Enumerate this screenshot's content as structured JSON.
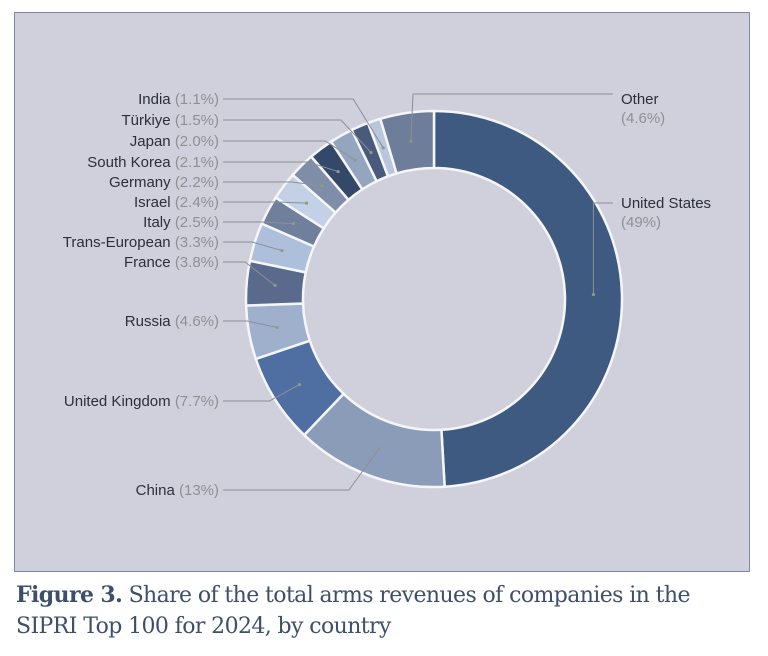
{
  "caption": {
    "figure_label": "Figure 3.",
    "text": " Share of the total arms revenues of companies in the SIPRI Top 100 for 2024, by country"
  },
  "chart_data": {
    "type": "pie",
    "donut": true,
    "title": "",
    "unit": "%",
    "start": "12 o'clock, clockwise",
    "slices": [
      {
        "label": "United States",
        "value": 49,
        "display": "(49%)",
        "color": "#3f5a80"
      },
      {
        "label": "China",
        "value": 13,
        "display": "(13%)",
        "color": "#8a9cb8"
      },
      {
        "label": "United Kingdom",
        "value": 7.7,
        "display": "(7.7%)",
        "color": "#4f6ea2"
      },
      {
        "label": "Russia",
        "value": 4.6,
        "display": "(4.6%)",
        "color": "#9fb0cc"
      },
      {
        "label": "France",
        "value": 3.8,
        "display": "(3.8%)",
        "color": "#5a6a8c"
      },
      {
        "label": "Trans-European",
        "value": 3.3,
        "display": "(3.3%)",
        "color": "#aebfdc"
      },
      {
        "label": "Italy",
        "value": 2.5,
        "display": "(2.5%)",
        "color": "#6f7f9c"
      },
      {
        "label": "Israel",
        "value": 2.4,
        "display": "(2.4%)",
        "color": "#c3d0e6"
      },
      {
        "label": "Germany",
        "value": 2.2,
        "display": "(2.2%)",
        "color": "#7f8ea8"
      },
      {
        "label": "South Korea",
        "value": 2.1,
        "display": "(2.1%)",
        "color": "#34486a"
      },
      {
        "label": "Japan",
        "value": 2.0,
        "display": "(2.0%)",
        "color": "#94a5c0"
      },
      {
        "label": "Türkiye",
        "value": 1.5,
        "display": "(1.5%)",
        "color": "#4a5a7c"
      },
      {
        "label": "India",
        "value": 1.1,
        "display": "(1.1%)",
        "color": "#b8c6de"
      },
      {
        "label": "Other",
        "value": 4.6,
        "display": "(4.6%)",
        "color": "#6d7d9a"
      }
    ]
  }
}
